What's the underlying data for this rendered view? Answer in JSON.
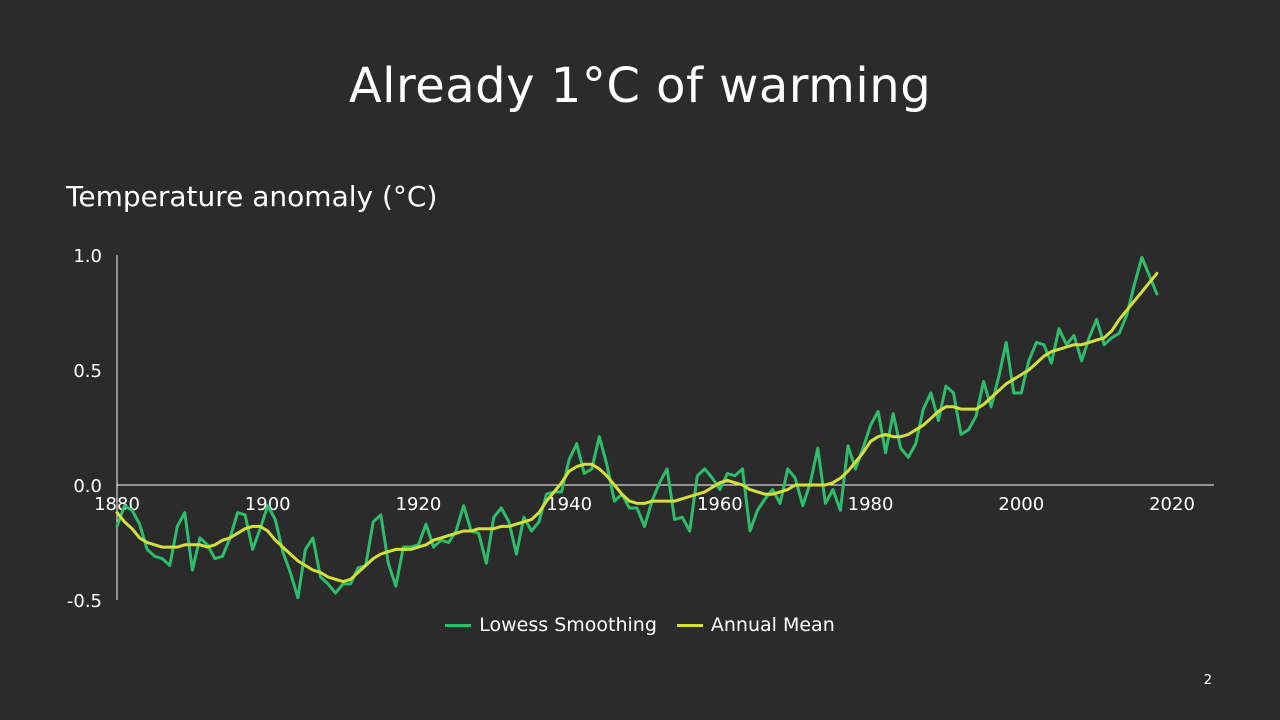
{
  "slide": {
    "title": "Already 1°C of warming",
    "page_number": "2"
  },
  "colors": {
    "background": "#2b2b2b",
    "annual_mean": "#2ebd6b",
    "lowess": "#d4e03a",
    "axis": "#ffffff"
  },
  "chart_data": {
    "type": "line",
    "title": "Temperature anomaly (°C)",
    "xlabel": "",
    "ylabel": "",
    "xlim": [
      1880,
      2020
    ],
    "ylim": [
      -0.5,
      1.0
    ],
    "x_ticks": [
      1880,
      1900,
      1920,
      1940,
      1960,
      1980,
      2000,
      2020
    ],
    "y_ticks": [
      -0.5,
      0.0,
      0.5,
      1.0
    ],
    "y_tick_labels": [
      "-0.5",
      "0.0",
      "0.5",
      "1.0"
    ],
    "grid": false,
    "legend_position": "bottom",
    "x": [
      1880,
      1881,
      1882,
      1883,
      1884,
      1885,
      1886,
      1887,
      1888,
      1889,
      1890,
      1891,
      1892,
      1893,
      1894,
      1895,
      1896,
      1897,
      1898,
      1899,
      1900,
      1901,
      1902,
      1903,
      1904,
      1905,
      1906,
      1907,
      1908,
      1909,
      1910,
      1911,
      1912,
      1913,
      1914,
      1915,
      1916,
      1917,
      1918,
      1919,
      1920,
      1921,
      1922,
      1923,
      1924,
      1925,
      1926,
      1927,
      1928,
      1929,
      1930,
      1931,
      1932,
      1933,
      1934,
      1935,
      1936,
      1937,
      1938,
      1939,
      1940,
      1941,
      1942,
      1943,
      1944,
      1945,
      1946,
      1947,
      1948,
      1949,
      1950,
      1951,
      1952,
      1953,
      1954,
      1955,
      1956,
      1957,
      1958,
      1959,
      1960,
      1961,
      1962,
      1963,
      1964,
      1965,
      1966,
      1967,
      1968,
      1969,
      1970,
      1971,
      1972,
      1973,
      1974,
      1975,
      1976,
      1977,
      1978,
      1979,
      1980,
      1981,
      1982,
      1983,
      1984,
      1985,
      1986,
      1987,
      1988,
      1989,
      1990,
      1991,
      1992,
      1993,
      1994,
      1995,
      1996,
      1997,
      1998,
      1999,
      2000,
      2001,
      2002,
      2003,
      2004,
      2005,
      2006,
      2007,
      2008,
      2009,
      2010,
      2011,
      2012,
      2013,
      2014,
      2015,
      2016,
      2017,
      2018
    ],
    "series": [
      {
        "name": "Annual Mean",
        "color": "#2ebd6b",
        "values": [
          -0.18,
          -0.09,
          -0.11,
          -0.17,
          -0.28,
          -0.31,
          -0.32,
          -0.35,
          -0.18,
          -0.12,
          -0.37,
          -0.23,
          -0.26,
          -0.32,
          -0.31,
          -0.23,
          -0.12,
          -0.13,
          -0.28,
          -0.19,
          -0.09,
          -0.15,
          -0.29,
          -0.38,
          -0.49,
          -0.28,
          -0.23,
          -0.4,
          -0.43,
          -0.47,
          -0.43,
          -0.43,
          -0.36,
          -0.35,
          -0.16,
          -0.13,
          -0.34,
          -0.44,
          -0.27,
          -0.27,
          -0.26,
          -0.17,
          -0.27,
          -0.24,
          -0.25,
          -0.2,
          -0.09,
          -0.2,
          -0.21,
          -0.34,
          -0.14,
          -0.1,
          -0.16,
          -0.3,
          -0.14,
          -0.2,
          -0.16,
          -0.04,
          -0.03,
          -0.03,
          0.11,
          0.18,
          0.05,
          0.07,
          0.21,
          0.09,
          -0.07,
          -0.04,
          -0.1,
          -0.1,
          -0.18,
          -0.07,
          0.01,
          0.07,
          -0.15,
          -0.14,
          -0.2,
          0.04,
          0.07,
          0.03,
          -0.02,
          0.05,
          0.04,
          0.07,
          -0.2,
          -0.11,
          -0.06,
          -0.02,
          -0.08,
          0.07,
          0.03,
          -0.09,
          0.01,
          0.16,
          -0.08,
          -0.02,
          -0.11,
          0.17,
          0.07,
          0.16,
          0.26,
          0.32,
          0.14,
          0.31,
          0.16,
          0.12,
          0.18,
          0.33,
          0.4,
          0.28,
          0.43,
          0.4,
          0.22,
          0.24,
          0.3,
          0.45,
          0.34,
          0.47,
          0.62,
          0.4,
          0.4,
          0.54,
          0.62,
          0.61,
          0.53,
          0.68,
          0.61,
          0.65,
          0.54,
          0.64,
          0.72,
          0.61,
          0.64,
          0.66,
          0.74,
          0.87,
          0.99,
          0.91,
          0.83
        ]
      },
      {
        "name": "Lowess Smoothing",
        "color": "#d4e03a",
        "values": [
          -0.12,
          -0.16,
          -0.19,
          -0.23,
          -0.25,
          -0.26,
          -0.27,
          -0.27,
          -0.27,
          -0.26,
          -0.26,
          -0.26,
          -0.27,
          -0.26,
          -0.24,
          -0.23,
          -0.21,
          -0.19,
          -0.18,
          -0.18,
          -0.2,
          -0.24,
          -0.27,
          -0.3,
          -0.33,
          -0.35,
          -0.37,
          -0.38,
          -0.4,
          -0.41,
          -0.42,
          -0.41,
          -0.38,
          -0.35,
          -0.32,
          -0.3,
          -0.29,
          -0.28,
          -0.28,
          -0.28,
          -0.27,
          -0.26,
          -0.24,
          -0.23,
          -0.22,
          -0.21,
          -0.2,
          -0.2,
          -0.19,
          -0.19,
          -0.19,
          -0.18,
          -0.18,
          -0.17,
          -0.16,
          -0.15,
          -0.12,
          -0.07,
          -0.03,
          0.01,
          0.06,
          0.08,
          0.09,
          0.09,
          0.07,
          0.04,
          0.0,
          -0.04,
          -0.07,
          -0.08,
          -0.08,
          -0.07,
          -0.07,
          -0.07,
          -0.07,
          -0.06,
          -0.05,
          -0.04,
          -0.03,
          -0.01,
          0.01,
          0.02,
          0.01,
          0.0,
          -0.02,
          -0.03,
          -0.04,
          -0.04,
          -0.03,
          -0.02,
          0.0,
          0.0,
          0.0,
          0.0,
          0.0,
          0.01,
          0.03,
          0.06,
          0.1,
          0.14,
          0.19,
          0.21,
          0.22,
          0.21,
          0.21,
          0.22,
          0.24,
          0.26,
          0.29,
          0.32,
          0.34,
          0.34,
          0.33,
          0.33,
          0.33,
          0.35,
          0.38,
          0.41,
          0.44,
          0.46,
          0.48,
          0.5,
          0.53,
          0.56,
          0.58,
          0.59,
          0.6,
          0.61,
          0.61,
          0.62,
          0.63,
          0.64,
          0.67,
          0.72,
          0.76,
          0.8,
          0.84,
          0.88,
          0.92
        ]
      }
    ]
  }
}
